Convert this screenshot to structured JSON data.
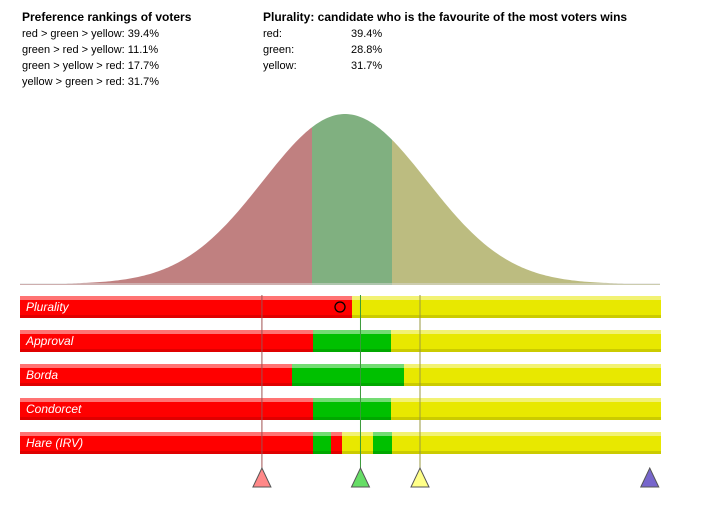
{
  "rankings": {
    "heading": "Preference rankings of voters",
    "items": [
      "red > green > yellow: 39.4%",
      "green > red > yellow: 11.1%",
      "green > yellow > red: 17.7%",
      "yellow > green > red: 31.7%"
    ]
  },
  "plurality_summary": {
    "heading": "Plurality: candidate who is the favourite of the most voters wins",
    "rows": [
      {
        "name": "red:",
        "value": "39.4%"
      },
      {
        "name": "green:",
        "value": "28.8%"
      },
      {
        "name": "yellow:",
        "value": "31.7%"
      }
    ]
  },
  "colors": {
    "red": "#ff0000",
    "green": "#00c000",
    "yellow": "#e8e800",
    "curve_red": "#c08080",
    "curve_green": "#80b080",
    "curve_yellow": "#bcbc80",
    "marker_red": "#ff8888",
    "marker_green": "#66dd66",
    "marker_yellow": "#ffff88",
    "marker_purple": "#7766cc"
  },
  "methods": [
    {
      "label": "Plurality",
      "segments": [
        [
          "red",
          0.519
        ],
        [
          "yellow",
          0.481
        ]
      ]
    },
    {
      "label": "Approval",
      "segments": [
        [
          "red",
          0.458
        ],
        [
          "green",
          0.122
        ],
        [
          "yellow",
          0.42
        ]
      ]
    },
    {
      "label": "Borda",
      "segments": [
        [
          "red",
          0.425
        ],
        [
          "green",
          0.175
        ],
        [
          "yellow",
          0.4
        ]
      ]
    },
    {
      "label": "Condorcet",
      "segments": [
        [
          "red",
          0.458
        ],
        [
          "green",
          0.122
        ],
        [
          "yellow",
          0.42
        ]
      ]
    },
    {
      "label": "Hare (IRV)",
      "segments": [
        [
          "red",
          0.458
        ],
        [
          "green",
          0.028
        ],
        [
          "red",
          0.017
        ],
        [
          "yellow",
          0.048
        ],
        [
          "green",
          0.03
        ],
        [
          "yellow",
          0.419
        ]
      ]
    }
  ],
  "candidates": [
    {
      "name": "red",
      "position": 0.378
    },
    {
      "name": "green",
      "position": 0.532
    },
    {
      "name": "yellow",
      "position": 0.625
    },
    {
      "name": "purple",
      "position": 0.984
    }
  ]
}
